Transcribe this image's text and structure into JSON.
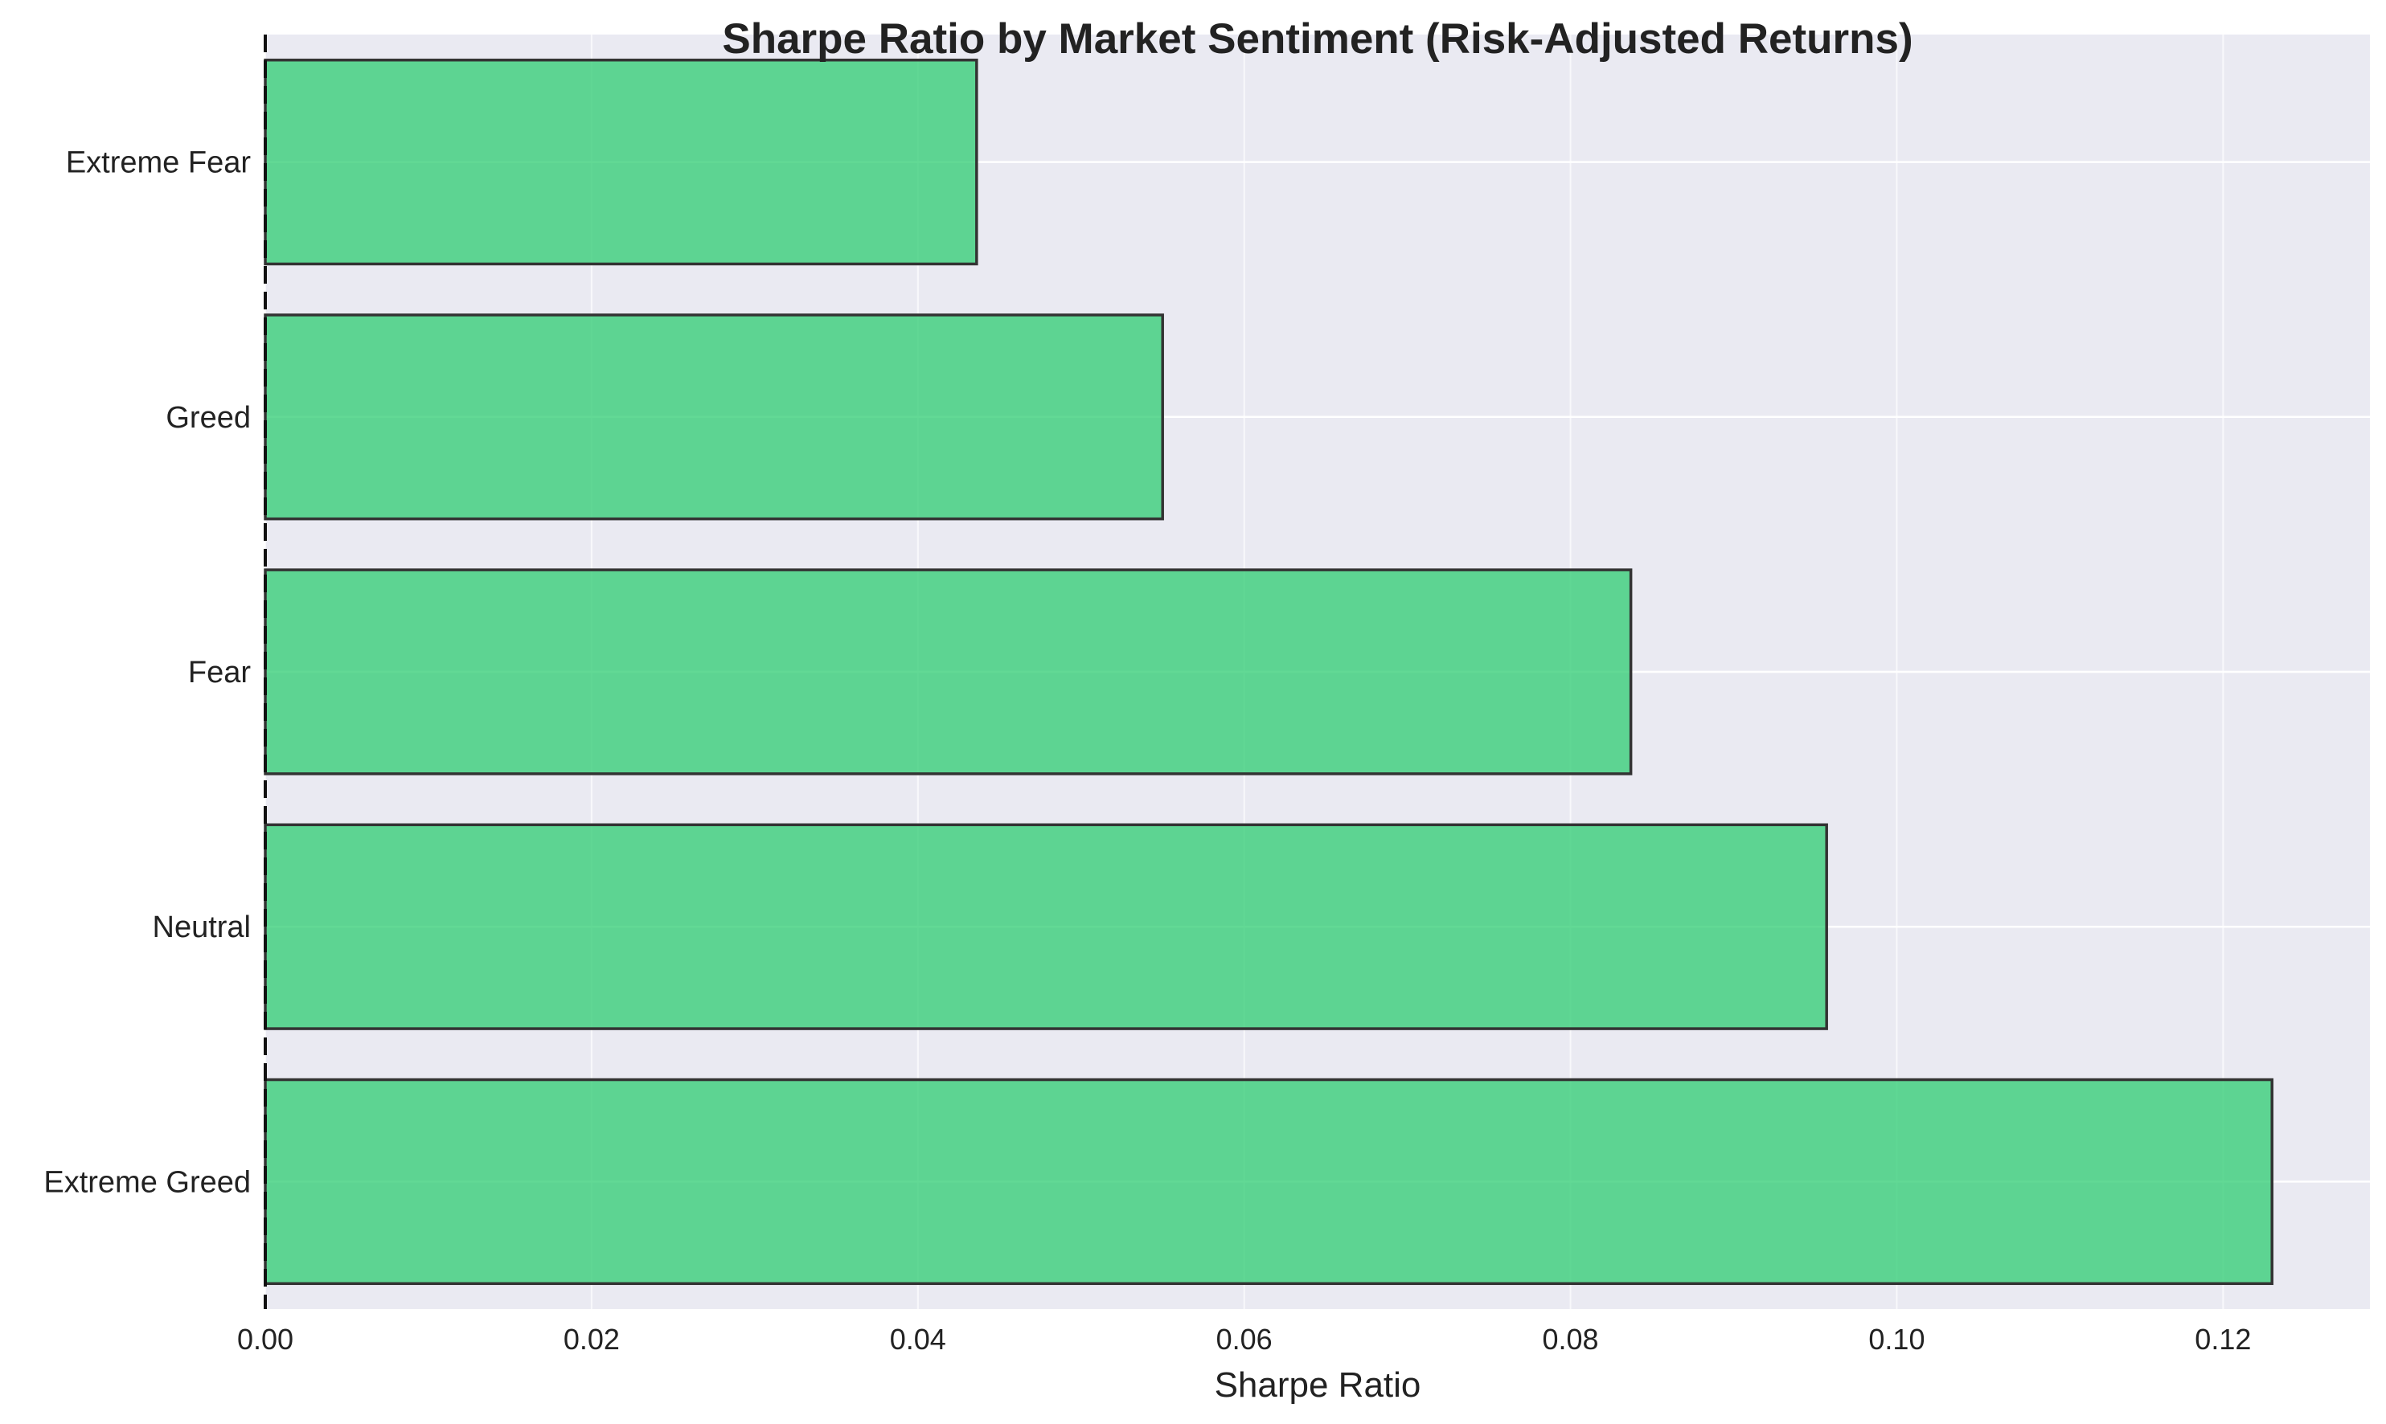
{
  "chart_data": {
    "type": "bar",
    "orientation": "horizontal",
    "title": "Sharpe Ratio by Market Sentiment (Risk-Adjusted Returns)",
    "xlabel": "Sharpe Ratio",
    "ylabel": "",
    "categories": [
      "Extreme Greed",
      "Neutral",
      "Fear",
      "Greed",
      "Extreme Fear"
    ],
    "values": [
      0.123,
      0.0957,
      0.0837,
      0.055,
      0.0436
    ],
    "xlim": [
      0,
      0.129
    ],
    "xticks": [
      0.0,
      0.02,
      0.04,
      0.06,
      0.08,
      0.1,
      0.12
    ],
    "xtick_labels": [
      "0.00",
      "0.02",
      "0.04",
      "0.06",
      "0.08",
      "0.10",
      "0.12"
    ],
    "reference_line": 0,
    "grid": true,
    "bar_color": "#2ecc71",
    "bar_edge_color": "#333333",
    "background_color": "#eaeaf2"
  }
}
